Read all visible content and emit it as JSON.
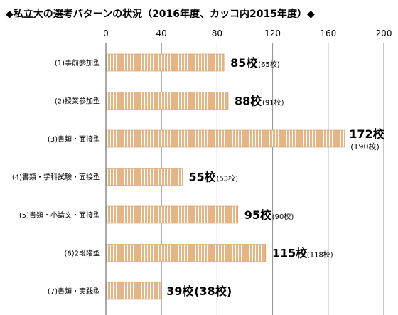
{
  "chart_data": {
    "type": "bar",
    "orientation": "horizontal",
    "title": "◆私立大の選考パターンの状況（2016年度、カッコ内2015年度）◆",
    "xlim": [
      0,
      200
    ],
    "xticks": [
      "0",
      "40",
      "80",
      "120",
      "160",
      "200"
    ],
    "grid": true,
    "categories": [
      "(1)事前参加型",
      "(2)授業参加型",
      "(3)書類・面接型",
      "(4)書類・学科試験・面接型",
      "(5)書類・小論文・面接型",
      "(6)2段階型",
      "(7)書類・実践型"
    ],
    "series": [
      {
        "values": [
          85,
          88,
          172,
          55,
          95,
          115,
          39
        ]
      }
    ],
    "value_labels": [
      "85校",
      "88校",
      "172校",
      "55校",
      "95校",
      "115校",
      "39校"
    ],
    "prev_labels": [
      "(65校)",
      "(91校)",
      "(190校)",
      "(53校)",
      "(90校)",
      "(118校)",
      "(38校)"
    ],
    "bar_colors": {
      "fill": "#e6b585",
      "stripe": "#ffffff"
    }
  }
}
